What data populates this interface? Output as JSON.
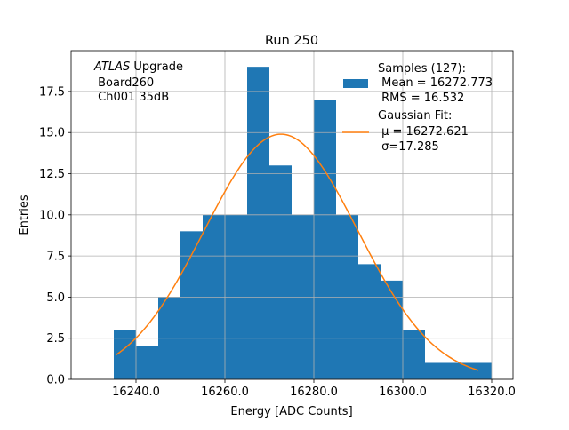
{
  "chart_data": {
    "type": "bar",
    "title": "Run 250",
    "xlabel": "Energy [ADC Counts]",
    "ylabel": "Entries",
    "xlim": [
      16225.4,
      16324.8
    ],
    "ylim": [
      0,
      19.98
    ],
    "grid": true,
    "xticks": [
      16240,
      16260,
      16280,
      16300,
      16320
    ],
    "xtick_labels": [
      "16240.0",
      "16260.0",
      "16280.0",
      "16300.0",
      "16320.0"
    ],
    "yticks": [
      0,
      2.5,
      5,
      7.5,
      10,
      12.5,
      15,
      17.5
    ],
    "ytick_labels": [
      "0.0",
      "2.5",
      "5.0",
      "7.5",
      "10.0",
      "12.5",
      "15.0",
      "17.5"
    ],
    "bin_edges": [
      16235,
      16240,
      16245,
      16250,
      16255,
      16260,
      16265,
      16270,
      16275,
      16280,
      16285,
      16290,
      16295,
      16300,
      16305,
      16310,
      16315,
      16320
    ],
    "counts": [
      3,
      2,
      5,
      9,
      10,
      10,
      19,
      13,
      10,
      17,
      10,
      7,
      6,
      3,
      1,
      1,
      1
    ],
    "bar_color": "#1f77b4",
    "fit": {
      "mu": 16272.621,
      "sigma": 17.285,
      "amplitude": 14.9,
      "x_range": [
        16235.5,
        16317
      ],
      "color": "#ff7f0e"
    },
    "legend": {
      "placement": "top-right",
      "samples_lines": [
        "Samples (127):",
        " Mean = 16272.773",
        " RMS = 16.532"
      ],
      "fit_lines": [
        "Gaussian Fit:",
        " μ = 16272.621",
        " σ=17.285"
      ]
    },
    "annotation": {
      "italic": "ATLAS",
      "line1_rest": " Upgrade",
      "line2": " Board260",
      "line3": " Ch001 35dB"
    }
  }
}
